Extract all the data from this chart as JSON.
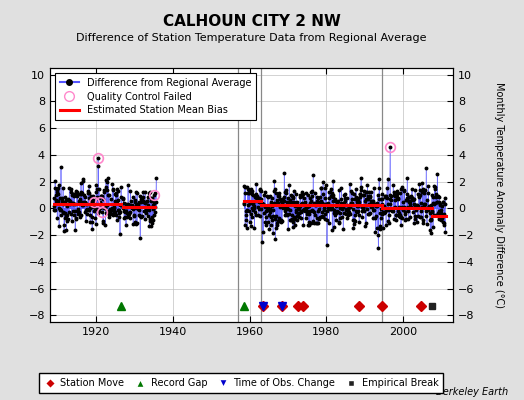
{
  "title": "CALHOUN CITY 2 NW",
  "subtitle": "Difference of Station Temperature Data from Regional Average",
  "ylabel": "Monthly Temperature Anomaly Difference (°C)",
  "ylim": [
    -8.5,
    10.5
  ],
  "yticks": [
    -8,
    -6,
    -4,
    -2,
    0,
    2,
    4,
    6,
    8,
    10
  ],
  "xlim": [
    1908,
    2013
  ],
  "xticks": [
    1920,
    1940,
    1960,
    1980,
    2000
  ],
  "background_color": "#e0e0e0",
  "plot_bg_color": "#ffffff",
  "grid_color": "#c0c0c0",
  "line_color": "#5555ff",
  "bias_color": "#ff0000",
  "qc_color": "#ff88cc",
  "data_color": "#000000",
  "station_move_color": "#cc0000",
  "record_gap_color": "#007700",
  "tobs_color": "#0000cc",
  "emp_break_color": "#222222",
  "vertical_line_color": "#888888",
  "vertical_lines": [
    1957.0,
    1963.0,
    1994.5
  ],
  "station_moves": [
    1963.5,
    1968.5,
    1972.5,
    1974.0,
    1988.5,
    1994.5,
    2004.5
  ],
  "record_gaps": [
    1926.5,
    1958.5
  ],
  "emp_breaks": [
    2007.5
  ],
  "tobs_changes": [
    1963.5,
    1968.5
  ],
  "bias_segments": [
    {
      "x": [
        1909.0,
        1926.5
      ],
      "y": [
        0.35,
        0.35
      ]
    },
    {
      "x": [
        1927.0,
        1935.5
      ],
      "y": [
        0.1,
        0.1
      ]
    },
    {
      "x": [
        1958.5,
        1963.0
      ],
      "y": [
        0.55,
        0.55
      ]
    },
    {
      "x": [
        1963.0,
        1994.5
      ],
      "y": [
        0.25,
        0.25
      ]
    },
    {
      "x": [
        1994.5,
        2007.5
      ],
      "y": [
        0.05,
        0.05
      ]
    },
    {
      "x": [
        2007.5,
        2011.0
      ],
      "y": [
        -0.55,
        -0.55
      ]
    }
  ],
  "seg1_start": 1909.0,
  "seg1_end": 1926.6,
  "seg1_mean": 0.35,
  "seg2_start": 1927.0,
  "seg2_end": 1935.7,
  "seg2_mean": 0.1,
  "seg3_start": 1958.5,
  "seg3_end": 2011.0,
  "seg3_mean": 0.12,
  "data_std": 0.85,
  "seed": 12345,
  "marker_y": -7.3,
  "legend_fontsize": 7,
  "tick_fontsize": 8,
  "title_fontsize": 11,
  "subtitle_fontsize": 8
}
